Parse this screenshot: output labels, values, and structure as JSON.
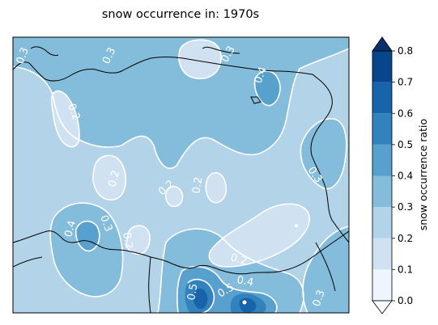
{
  "title": "snow occurrence in: 1970s",
  "colorbar": {
    "label": "snow occurrence ratio",
    "ticks": [
      "0.0",
      "0.1",
      "0.2",
      "0.3",
      "0.4",
      "0.5",
      "0.6",
      "0.7",
      "0.8"
    ],
    "levels": [
      0.0,
      0.1,
      0.2,
      0.3,
      0.4,
      0.5,
      0.6,
      0.7,
      0.8
    ],
    "colors": [
      "#eff5fc",
      "#d0e1f2",
      "#b3d3e8",
      "#84bcdb",
      "#58a1cf",
      "#3282be",
      "#1764ab",
      "#08468b"
    ],
    "extend_min_color": "#f7fbff",
    "extend_max_color": "#08306b"
  },
  "contour_labels": [
    "0.3",
    "0.3",
    "0.4",
    "0.2",
    "0.2",
    "0.2",
    "0.2",
    "0.3",
    "0.4",
    "0.3",
    "0.2",
    "0.2",
    "0.5",
    "0.5",
    "0.4",
    "0.3",
    "0.3"
  ]
}
